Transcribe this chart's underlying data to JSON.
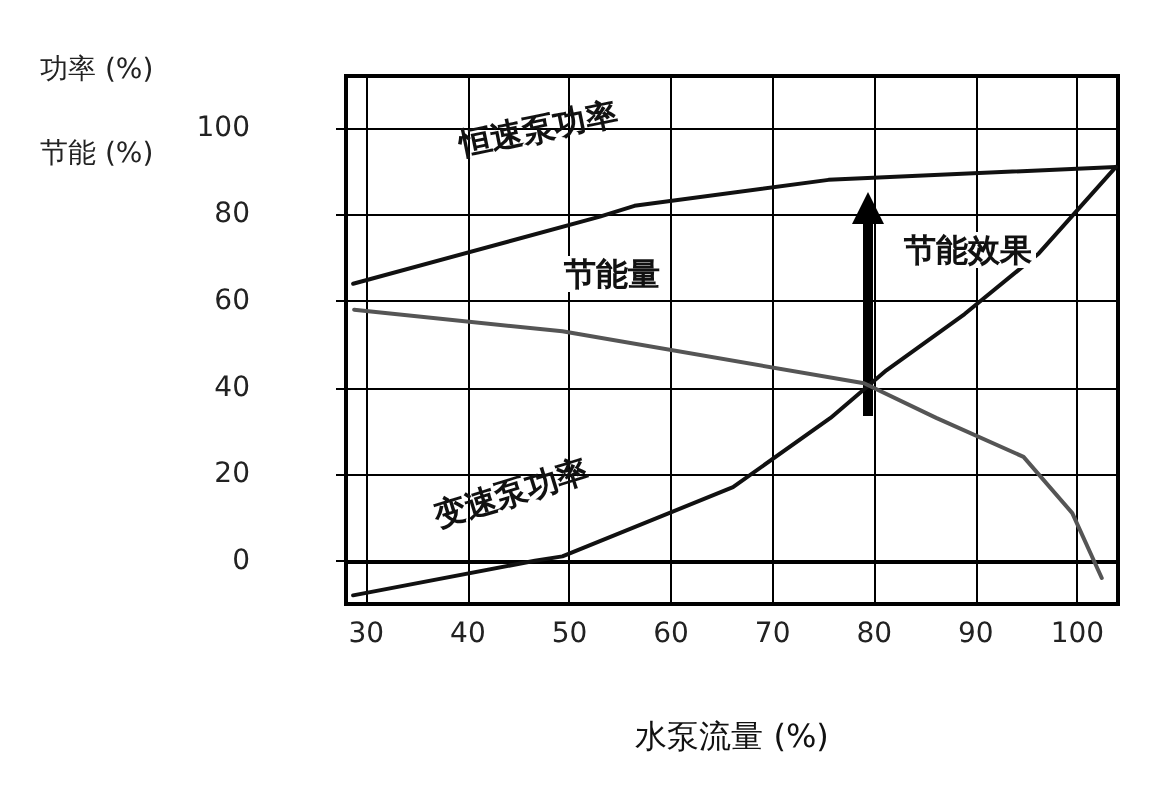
{
  "chart_data": {
    "type": "line",
    "xlabel": "水泵流量 (%)",
    "ylabel": "功率 (%)\n节能 (%)",
    "xlim": [
      28,
      104
    ],
    "xticks": [
      30,
      40,
      50,
      60,
      70,
      80,
      90,
      100
    ],
    "ylim": [
      -10,
      112
    ],
    "yticks": [
      0,
      20,
      40,
      60,
      80,
      100
    ],
    "grid": true,
    "legend": false,
    "marker": "none",
    "line_style": "solid",
    "series": [
      {
        "name": "恒速泵功率",
        "color": "#111111",
        "x": [
          28.7,
          53,
          56.4,
          75.5,
          103.8
        ],
        "values": [
          64,
          79.5,
          82,
          88,
          91
        ]
      },
      {
        "name": "变速泵功率",
        "color": "#111111",
        "x": [
          28.7,
          46.6,
          49.3,
          66.1,
          75.7,
          81.2,
          88.9,
          96.2,
          103.8
        ],
        "values": [
          -8,
          0,
          1,
          17,
          33,
          44,
          57,
          71,
          91
        ]
      },
      {
        "color": "#555555",
        "x": [
          28.8,
          49.3,
          79,
          86.1,
          94.7,
          99.5,
          102.4
        ],
        "values": [
          58,
          53,
          41,
          33,
          24,
          11,
          -4
        ]
      }
    ],
    "annotations": [
      "节能量",
      "节能效果"
    ]
  }
}
